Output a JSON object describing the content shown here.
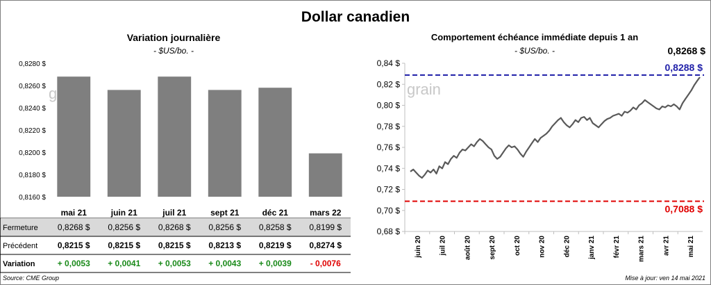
{
  "page": {
    "title": "Dollar canadien",
    "source": "Source: CME Group",
    "updated": "Mise à jour: ven 14 mai 2021",
    "watermark": "grain"
  },
  "chart_data": [
    {
      "type": "bar",
      "title": "Variation  journalière",
      "subtitle": "- $US/bo. -",
      "categories": [
        "mai 21",
        "juin 21",
        "juil 21",
        "sept 21",
        "déc 21",
        "mars 22"
      ],
      "values": [
        0.8268,
        0.8256,
        0.8268,
        0.8256,
        0.8258,
        0.8199
      ],
      "ylim": [
        0.816,
        0.828
      ],
      "yticks": [
        "0,8160 $",
        "0,8180 $",
        "0,8200 $",
        "0,8220 $",
        "0,8240 $",
        "0,8260 $",
        "0,8280 $"
      ],
      "grid": false,
      "bar_color": "#7f7f7f",
      "table": {
        "rows": [
          {
            "label": "Fermeture",
            "values": [
              "0,8268  $",
              "0,8256  $",
              "0,8268  $",
              "0,8256  $",
              "0,8258  $",
              "0,8199  $"
            ],
            "shaded": true
          },
          {
            "label": "Précédent",
            "values": [
              "0,8215  $",
              "0,8215  $",
              "0,8215  $",
              "0,8213  $",
              "0,8219  $",
              "0,8274  $"
            ],
            "shaded": false
          },
          {
            "label": "Variation",
            "values": [
              "+ 0,0053",
              "+ 0,0041",
              "+ 0,0053",
              "+ 0,0043",
              "+ 0,0039",
              "- 0,0076"
            ],
            "colors": [
              "#1a8a1a",
              "#1a8a1a",
              "#1a8a1a",
              "#1a8a1a",
              "#1a8a1a",
              "#e00000"
            ]
          }
        ]
      }
    },
    {
      "type": "line",
      "title": "Comportement échéance immédiate depuis 1 an",
      "subtitle": "- $US/bo. -",
      "xticks": [
        "juin 20",
        "juil 20",
        "août 20",
        "sept 20",
        "oct 20",
        "nov 20",
        "déc 20",
        "janv 21",
        "févr 21",
        "mars 21",
        "avr 21",
        "mai 21"
      ],
      "ylim": [
        0.68,
        0.84
      ],
      "yticks": [
        "0,68 $",
        "0,70 $",
        "0,72 $",
        "0,74 $",
        "0,76 $",
        "0,78 $",
        "0,80 $",
        "0,82 $",
        "0,84 $"
      ],
      "grid": false,
      "line_color": "#595959",
      "series": [
        {
          "values": [
            0.737,
            0.739,
            0.736,
            0.733,
            0.731,
            0.734,
            0.738,
            0.736,
            0.739,
            0.735,
            0.742,
            0.74,
            0.746,
            0.744,
            0.749,
            0.752,
            0.75,
            0.755,
            0.758,
            0.757,
            0.76,
            0.763,
            0.761,
            0.765,
            0.768,
            0.766,
            0.763,
            0.76,
            0.758,
            0.752,
            0.749,
            0.751,
            0.755,
            0.759,
            0.762,
            0.76,
            0.761,
            0.758,
            0.754,
            0.751,
            0.756,
            0.76,
            0.764,
            0.768,
            0.765,
            0.769,
            0.771,
            0.773,
            0.776,
            0.78,
            0.783,
            0.786,
            0.788,
            0.784,
            0.781,
            0.779,
            0.782,
            0.786,
            0.784,
            0.788,
            0.789,
            0.786,
            0.788,
            0.783,
            0.781,
            0.779,
            0.782,
            0.785,
            0.787,
            0.788,
            0.79,
            0.791,
            0.792,
            0.79,
            0.794,
            0.793,
            0.795,
            0.798,
            0.796,
            0.8,
            0.802,
            0.805,
            0.803,
            0.801,
            0.799,
            0.797,
            0.796,
            0.799,
            0.798,
            0.8,
            0.799,
            0.801,
            0.799,
            0.796,
            0.802,
            0.806,
            0.81,
            0.814,
            0.819,
            0.823,
            0.8268
          ]
        }
      ],
      "hlines": [
        {
          "value": 0.8288,
          "label": "0,8288  $",
          "color": "#2222aa"
        },
        {
          "value": 0.7088,
          "label": "0,7088  $",
          "color": "#e00000"
        }
      ],
      "last_label": "0,8268 $"
    }
  ]
}
